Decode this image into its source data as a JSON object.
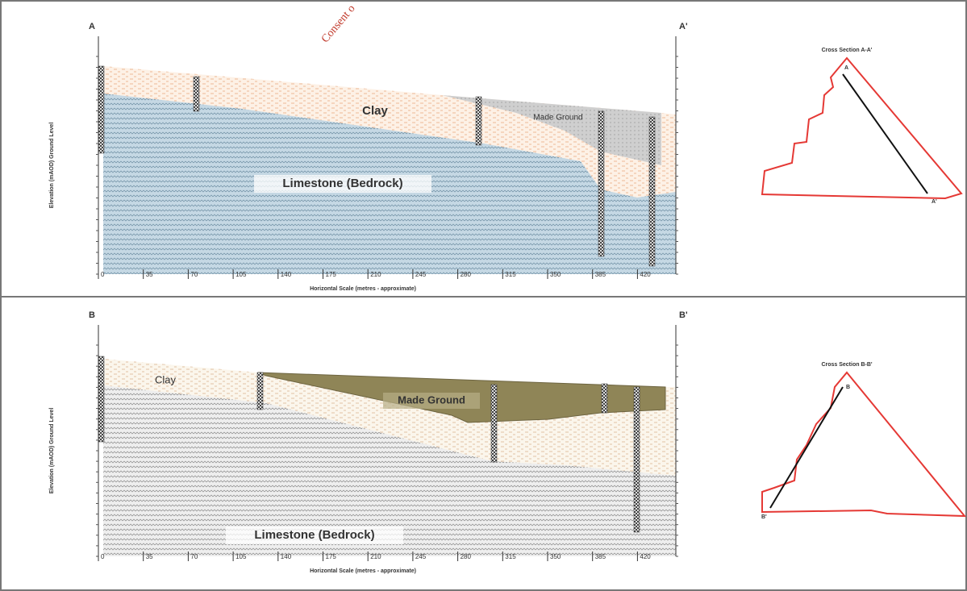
{
  "watermark": "Consent o",
  "sections": [
    {
      "start": "A",
      "end": "A'",
      "layers": {
        "clay": "Clay",
        "made_ground": "Made Ground",
        "limestone": "Limestone (Bedrock)"
      },
      "x_axis_label": "Horizontal Scale (metres - approximate)",
      "y_axis_label": "Elevation (mAOD) Ground Level",
      "x_ticks": [
        "0",
        "35",
        "70",
        "105",
        "140",
        "175",
        "210",
        "245",
        "280",
        "315",
        "350",
        "385",
        "420"
      ],
      "map": {
        "title": "Cross Section A-A'",
        "start": "A",
        "end": "A'"
      }
    },
    {
      "start": "B",
      "end": "B'",
      "layers": {
        "clay": "Clay",
        "made_ground": "Made Ground",
        "limestone": "Limestone (Bedrock)"
      },
      "x_axis_label": "Horizontal Scale (metres - approximate)",
      "y_axis_label": "Elevation (mAOD) Ground Level",
      "x_ticks": [
        "0",
        "35",
        "70",
        "105",
        "140",
        "175",
        "210",
        "245",
        "280",
        "315",
        "350",
        "385",
        "420"
      ],
      "map": {
        "title": "Cross Section B-B'",
        "start": "B",
        "end": "B'"
      }
    }
  ]
}
